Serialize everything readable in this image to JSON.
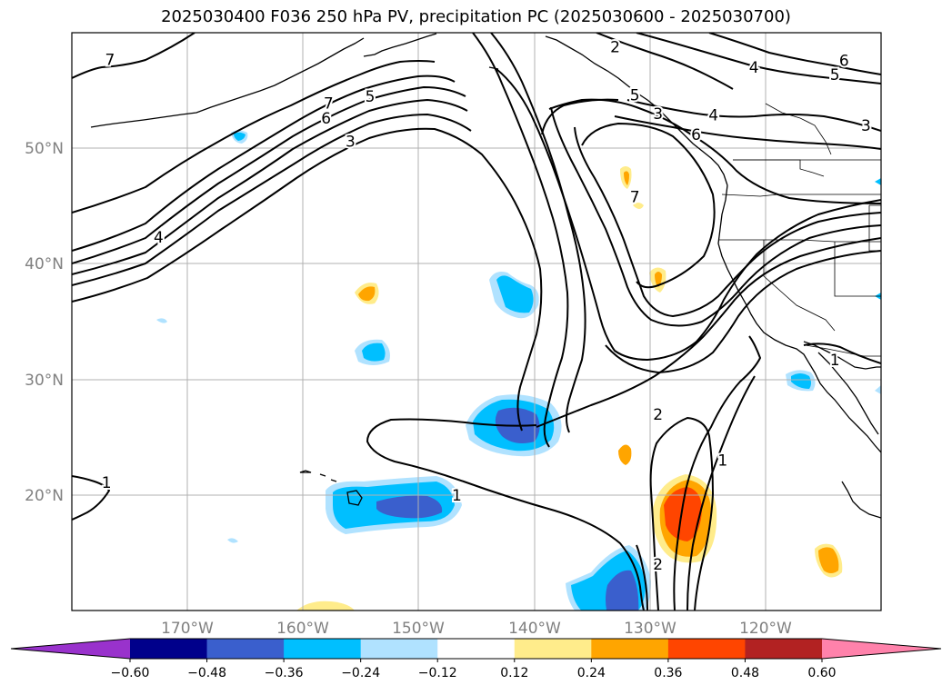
{
  "title": "2025030400 F036 250 hPa PV, precipitation PC (2025030600 - 2025030700)",
  "map": {
    "lat_range": [
      10,
      60
    ],
    "lon_range": [
      -180,
      -110
    ],
    "lat_labels": [
      "50°N",
      "40°N",
      "30°N",
      "20°N"
    ],
    "lon_labels": [
      "170°W",
      "160°W",
      "150°W",
      "140°W",
      "130°W",
      "120°W"
    ],
    "contour_labels": [
      {
        "text": "7",
        "lat": 57.7,
        "lon": -176.7
      },
      {
        "text": "7",
        "lat": 53.9,
        "lon": -157.8
      },
      {
        "text": "5",
        "lat": 54.5,
        "lon": -154.2
      },
      {
        "text": "6",
        "lat": 52.6,
        "lon": -158.0
      },
      {
        "text": "3",
        "lat": 50.6,
        "lon": -155.9
      },
      {
        "text": "4",
        "lat": 42.3,
        "lon": -172.5
      },
      {
        "text": "2",
        "lat": 58.8,
        "lon": -133.0
      },
      {
        "text": "5",
        "lat": 54.6,
        "lon": -131.3
      },
      {
        "text": "3",
        "lat": 53.0,
        "lon": -129.3
      },
      {
        "text": "6",
        "lat": 51.2,
        "lon": -126.0
      },
      {
        "text": "4",
        "lat": 57.0,
        "lon": -121.0
      },
      {
        "text": "4",
        "lat": 52.9,
        "lon": -124.5
      },
      {
        "text": "6",
        "lat": 57.6,
        "lon": -113.2
      },
      {
        "text": "5",
        "lat": 56.4,
        "lon": -114.0
      },
      {
        "text": "3",
        "lat": 52.0,
        "lon": -111.3
      },
      {
        "text": "7",
        "lat": 45.8,
        "lon": -131.3
      },
      {
        "text": "2",
        "lat": 27.0,
        "lon": -129.3
      },
      {
        "text": "1",
        "lat": 20.0,
        "lon": -146.7
      },
      {
        "text": "1",
        "lat": 23.0,
        "lon": -123.7
      },
      {
        "text": "1",
        "lat": 21.1,
        "lon": -177.0
      },
      {
        "text": "1",
        "lat": 31.7,
        "lon": -114.0
      },
      {
        "text": "2",
        "lat": 14.0,
        "lon": -129.3
      }
    ]
  },
  "colorbar": {
    "tick_labels": [
      "−0.60",
      "−0.48",
      "−0.36",
      "−0.24",
      "−0.12",
      "0.12",
      "0.24",
      "0.36",
      "0.48",
      "0.60"
    ],
    "colors": {
      "under": "#9932cc",
      "lt_m060": "#00008b",
      "m060_m048": "#00008b",
      "m048_m036": "#3a5fcd",
      "m036_m024": "#00bfff",
      "m024_m012": "#b0e2ff",
      "m012_p012": "#ffffff",
      "p012_p024": "#ffec8b",
      "p024_p036": "#ffa500",
      "p036_p048": "#ff4500",
      "p048_p060": "#b22222",
      "over": "#ff82ab"
    }
  }
}
